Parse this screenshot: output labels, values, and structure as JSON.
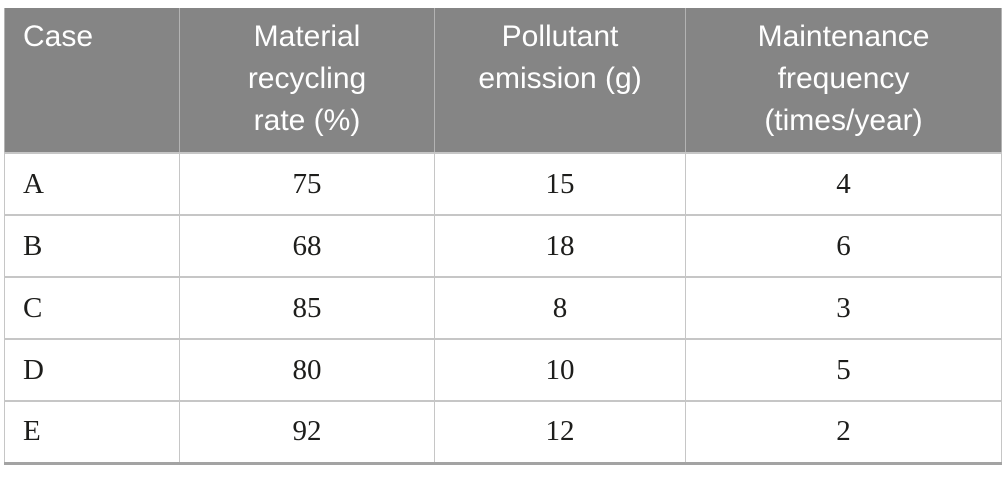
{
  "colors": {
    "header_bg": "#858585",
    "header_text": "#ffffff",
    "body_text": "#1d1d1b",
    "grid_line": "#c6c6c6",
    "header_divider": "#b3b3b3",
    "bottom_rule": "#a3a3a3"
  },
  "table": {
    "columns": [
      {
        "id": "case",
        "label": "Case",
        "lines": [
          "Case"
        ]
      },
      {
        "id": "material-recycling-rate",
        "label": "Material recycling rate (%)",
        "lines": [
          "Material",
          "recycling",
          "rate (%)"
        ]
      },
      {
        "id": "pollutant-emission",
        "label": "Pollutant emission (g)",
        "lines": [
          "Pollutant",
          "emission (g)"
        ]
      },
      {
        "id": "maintenance-frequency",
        "label": "Maintenance frequency (times/year)",
        "lines": [
          "Maintenance",
          "frequency",
          "(times/year)"
        ]
      }
    ],
    "rows": [
      [
        "A",
        "75",
        "15",
        "4"
      ],
      [
        "B",
        "68",
        "18",
        "6"
      ],
      [
        "C",
        "85",
        "8",
        "3"
      ],
      [
        "D",
        "80",
        "10",
        "5"
      ],
      [
        "E",
        "92",
        "12",
        "2"
      ]
    ]
  }
}
